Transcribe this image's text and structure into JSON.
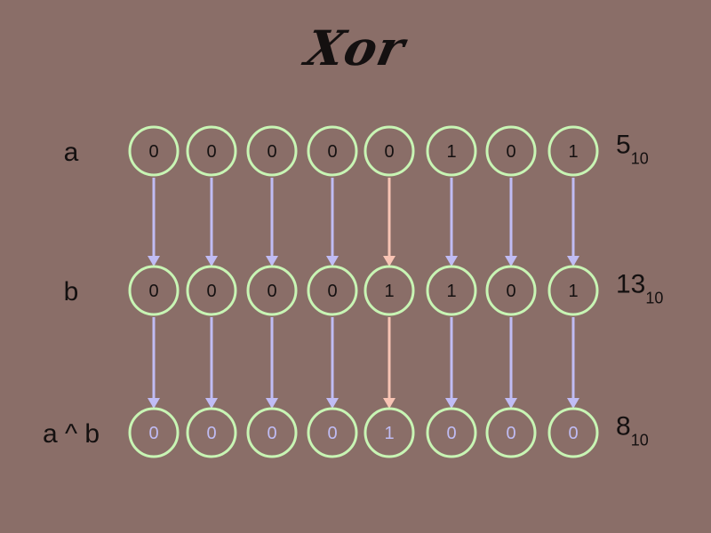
{
  "title": "Xor",
  "rows": [
    {
      "label": "a",
      "bits": [
        "0",
        "0",
        "0",
        "0",
        "0",
        "1",
        "0",
        "1"
      ],
      "decimal": "5",
      "base": "10"
    },
    {
      "label": "b",
      "bits": [
        "0",
        "0",
        "0",
        "0",
        "1",
        "1",
        "0",
        "1"
      ],
      "decimal": "13",
      "base": "10"
    },
    {
      "label": "a ^ b",
      "bits": [
        "0",
        "0",
        "0",
        "0",
        "1",
        "0",
        "0",
        "0"
      ],
      "decimal": "8",
      "base": "10"
    }
  ],
  "colors": {
    "background": "#8a6e68",
    "circle_stroke": "#c8f5b4",
    "arrow_default": "#c0bcf4",
    "arrow_highlight": "#f8c4b4",
    "text_dark": "#141010",
    "result_text": "#c0bcf4"
  },
  "highlight_column": 4
}
